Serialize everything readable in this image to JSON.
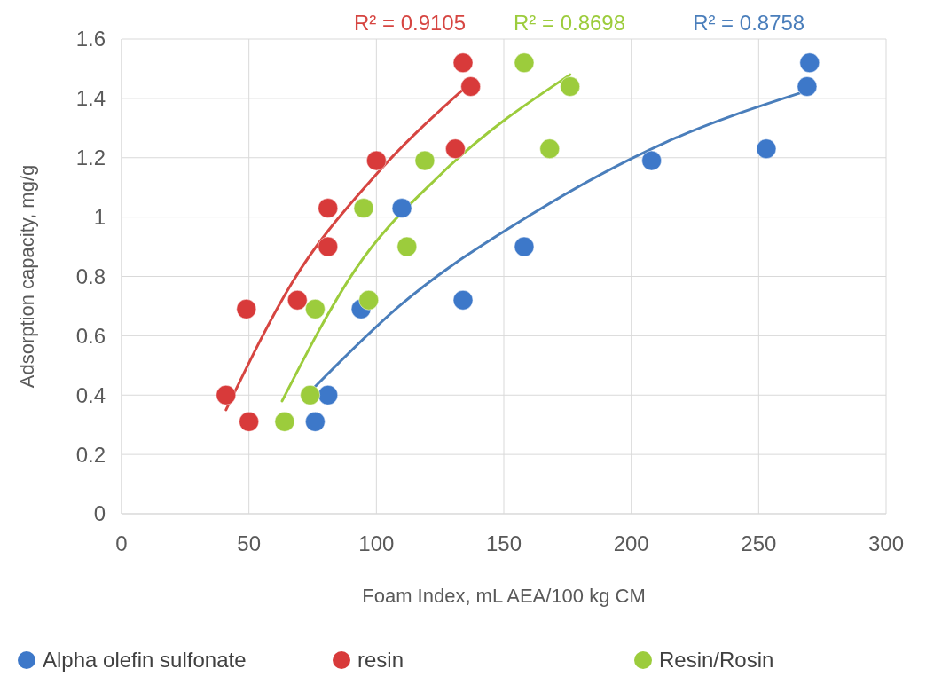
{
  "chart_data": {
    "type": "scatter",
    "xlabel": "Foam Index, mL AEA/100 kg CM",
    "ylabel": "Adsorption capacity, mg/g",
    "xlim": [
      0,
      300
    ],
    "xticks": [
      0,
      50,
      100,
      150,
      200,
      250,
      300
    ],
    "ylim": [
      0,
      1.6
    ],
    "yticks": [
      0,
      0.2,
      0.4,
      0.6,
      0.8,
      1,
      1.2,
      1.4,
      1.6
    ],
    "grid": true,
    "legend": "bottom",
    "marker": "circle",
    "annotations": [
      "R² = 0.9105",
      "R² = 0.8698",
      "R² = 0.8758"
    ],
    "series": [
      {
        "name": "Alpha olefin sulfonate",
        "color": "#3d78c9",
        "x": [
          270,
          269,
          253,
          208,
          110,
          158,
          134,
          94,
          81,
          76
        ],
        "values": [
          1.52,
          1.44,
          1.23,
          1.19,
          1.03,
          0.9,
          0.72,
          0.69,
          0.4,
          0.31
        ]
      },
      {
        "name": "resin",
        "color": "#d83a3a",
        "x": [
          134,
          137,
          131,
          100,
          81,
          81,
          69,
          49,
          41,
          50
        ],
        "values": [
          1.52,
          1.44,
          1.23,
          1.19,
          1.03,
          0.9,
          0.72,
          0.69,
          0.4,
          0.31
        ]
      },
      {
        "name": "Resin/Rosin",
        "color": "#9ccc3c",
        "x": [
          158,
          176,
          168,
          119,
          95,
          112,
          97,
          76,
          74,
          64
        ],
        "values": [
          1.52,
          1.44,
          1.23,
          1.19,
          1.03,
          0.9,
          0.72,
          0.69,
          0.4,
          0.31
        ]
      },
      {
        "type": "line",
        "marker": "none",
        "color": "#d64541",
        "x": [
          41,
          67,
          98.5,
          134
        ],
        "values": [
          0.35,
          0.78,
          1.13,
          1.43
        ]
      },
      {
        "type": "line",
        "marker": "none",
        "color": "#9ccc3c",
        "x": [
          63,
          91.5,
          126,
          176
        ],
        "values": [
          0.38,
          0.82,
          1.15,
          1.48
        ]
      },
      {
        "type": "line",
        "marker": "none",
        "color": "#4a7ebb",
        "x": [
          75,
          109,
          161,
          213,
          267
        ],
        "values": [
          0.42,
          0.7,
          1.01,
          1.25,
          1.42
        ]
      }
    ]
  }
}
